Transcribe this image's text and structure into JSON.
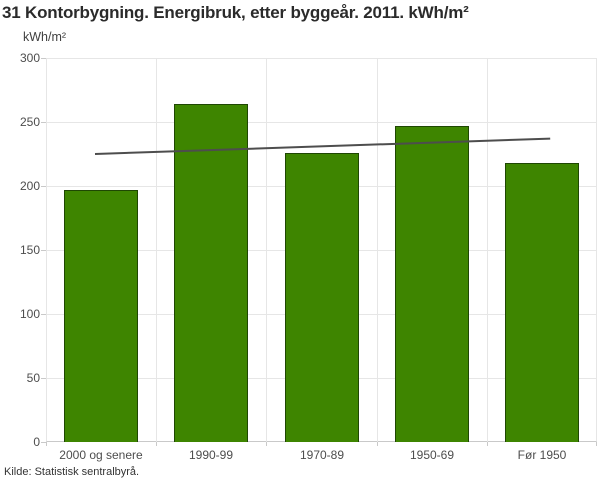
{
  "footer": {
    "source": "Kilde: Statistisk sentralbyrå."
  },
  "chart_data": {
    "type": "bar",
    "title": "31 Kontorbygning. Energibruk, etter byggeår. 2011. kWh/m²",
    "ylabel": "kWh/m²",
    "xlabel": "",
    "categories": [
      "2000 og senere",
      "1990-99",
      "1970-89",
      "1950-69",
      "Før 1950"
    ],
    "values": [
      197,
      264,
      226,
      247,
      218
    ],
    "ylim": [
      0,
      300
    ],
    "yticks": [
      0,
      50,
      100,
      150,
      200,
      250,
      300
    ],
    "grid": true,
    "legend_position": "none",
    "trend_line": {
      "start_value": 225,
      "end_value": 237,
      "start_x_frac": 0.089,
      "end_x_frac": 0.915
    },
    "colors": {
      "bar_fill": "#3e8500",
      "bar_border": "#1f4703",
      "gridline": "#e6e6e6",
      "axis_line": "#c9c9c9",
      "trend_line": "#4d4d4d",
      "title_text": "#2b2b2b",
      "tick_text": "#4d4d4d",
      "source_text": "#333333"
    }
  }
}
